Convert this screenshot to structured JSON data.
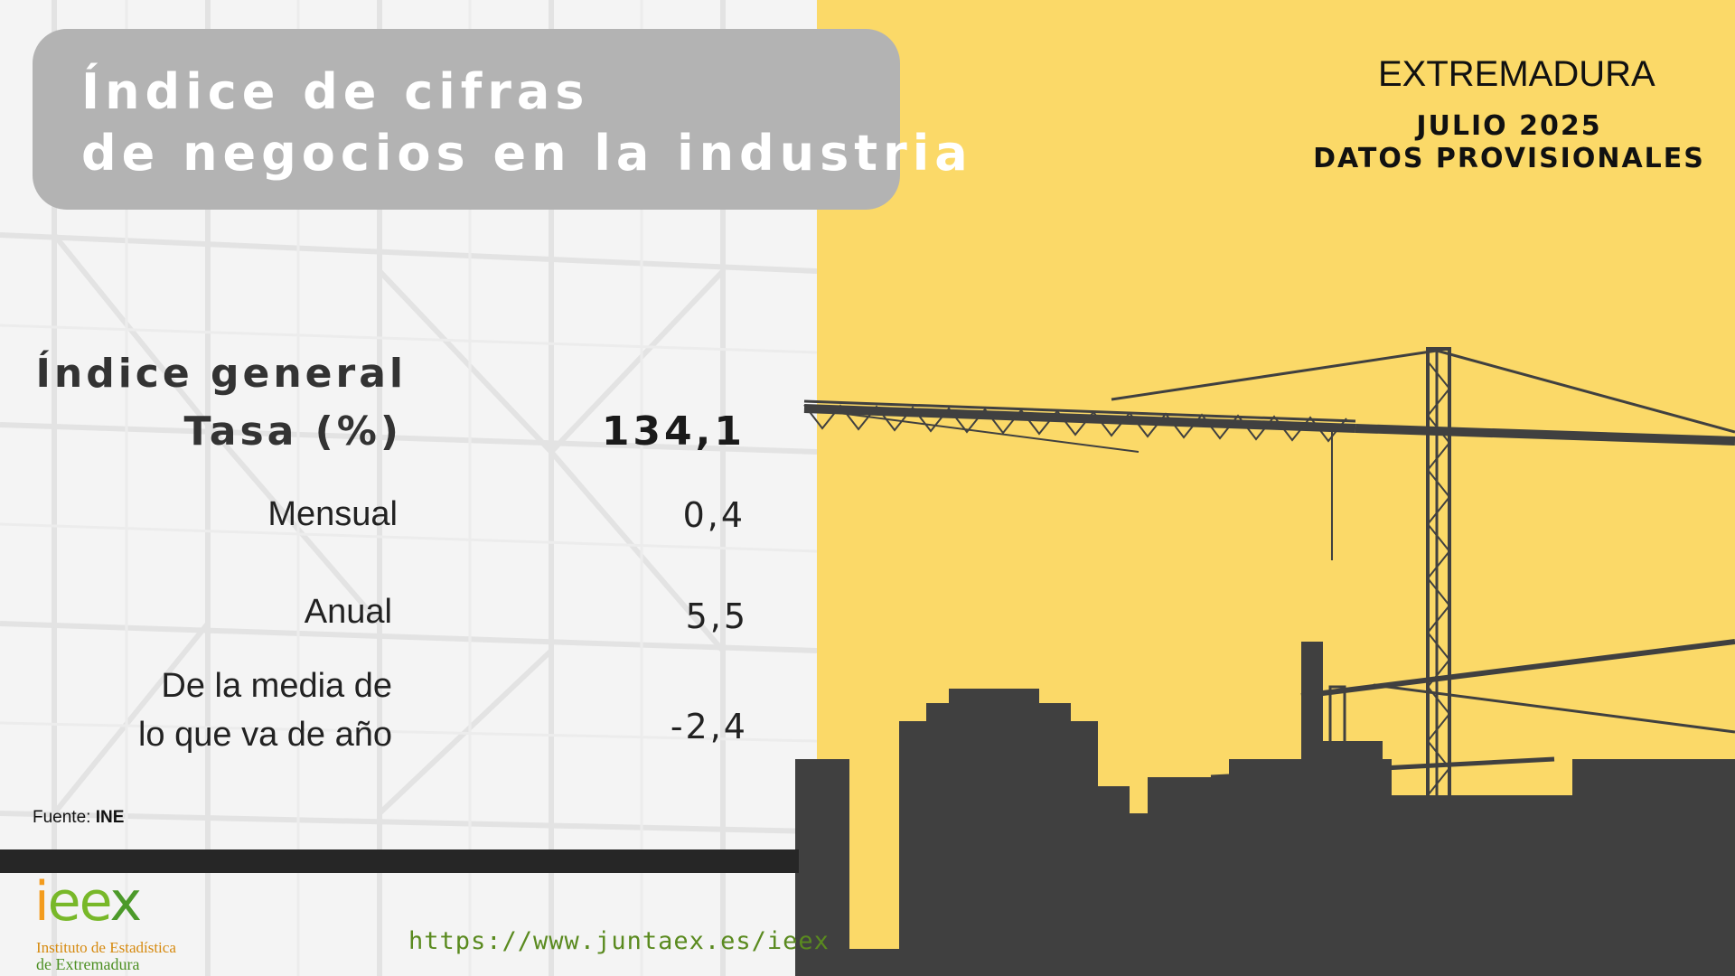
{
  "title": {
    "line1": "Índice de cifras",
    "line2": "de negocios en la industria"
  },
  "header": {
    "region": "EXTREMADURA",
    "period_line1": "JULIO 2025",
    "period_line2": "DATOS PROVISIONALES"
  },
  "indicator": {
    "general_label": "Índice general",
    "rate_label": "Tasa (%)",
    "general_value": "134,1"
  },
  "rates": [
    {
      "label": "Mensual",
      "value": "0,4"
    },
    {
      "label": "Anual",
      "value": "5,5"
    },
    {
      "label_line1": "De la media de",
      "label_line2": "lo que va de año",
      "value": "-2,4"
    }
  ],
  "footer": {
    "source_prefix": "Fuente:",
    "source_name": "INE",
    "url": "https://www.juntaex.es/ieex",
    "logo_word_i": "i",
    "logo_word_e1": "e",
    "logo_word_e2": "e",
    "logo_word_x": "x",
    "logo_line1": "Instituto de Estadística",
    "logo_line2": "de Extremadura"
  },
  "colors": {
    "title_box": "#b3b3b3",
    "right_panel": "#fbd968",
    "skyline": "#404040",
    "divider": "#262626",
    "url": "#5a8a1f"
  }
}
